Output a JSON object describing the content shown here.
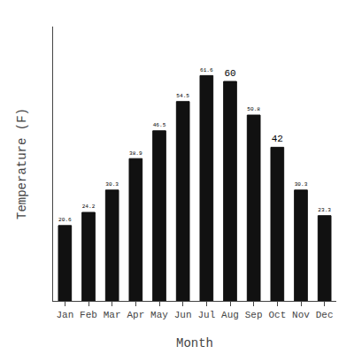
{
  "chart_data": {
    "type": "bar",
    "categories": [
      "Jan",
      "Feb",
      "Mar",
      "Apr",
      "May",
      "Jun",
      "Jul",
      "Aug",
      "Sep",
      "Oct",
      "Nov",
      "Dec"
    ],
    "values": [
      20.6,
      24.2,
      30.3,
      38.9,
      46.5,
      54.5,
      61.6,
      60.0,
      50.8,
      42.0,
      30.3,
      23.3
    ],
    "color": "#111111",
    "xlabel": "Month",
    "ylabel": "Temperature (F)",
    "ylim": [
      0,
      75
    ],
    "yticks": [],
    "grid": false,
    "data_labels": true,
    "tick_labels": "x"
  }
}
